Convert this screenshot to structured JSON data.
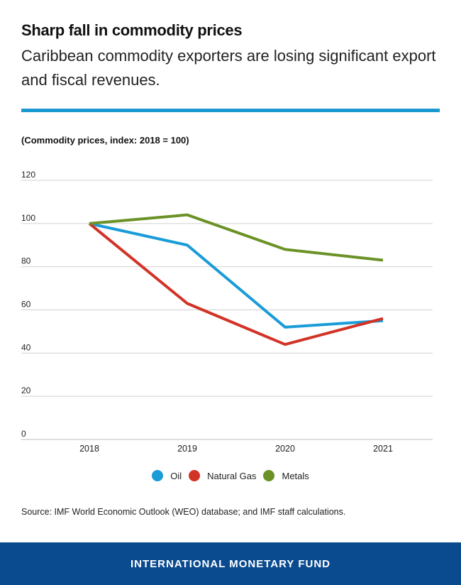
{
  "header": {
    "title": "Sharp fall in commodity prices",
    "subtitle": "Caribbean commodity exporters are losing significant export and fiscal revenues.",
    "accent_color": "#1a98d0"
  },
  "chart_data": {
    "type": "line",
    "title": "Sharp fall in commodity prices",
    "subtitle": "(Commodity prices, index: 2018 = 100)",
    "xlabel": "",
    "ylabel": "",
    "x": [
      "2018",
      "2019",
      "2020",
      "2021"
    ],
    "ylim": [
      0,
      120
    ],
    "yticks": [
      0,
      20,
      40,
      60,
      80,
      100,
      120
    ],
    "grid": true,
    "legend_position": "bottom-center",
    "series": [
      {
        "name": "Oil",
        "color": "#1a9cd8",
        "values": [
          100,
          90,
          52,
          55
        ]
      },
      {
        "name": "Natural Gas",
        "color": "#d23327",
        "values": [
          100,
          63,
          44,
          56
        ]
      },
      {
        "name": "Metals",
        "color": "#6b9226",
        "values": [
          100,
          104,
          88,
          83
        ]
      }
    ]
  },
  "source": "Source: IMF World Economic Outlook (WEO) database; and IMF staff calculations.",
  "footer": {
    "label": "INTERNATIONAL MONETARY FUND",
    "background": "#0a4b90"
  }
}
